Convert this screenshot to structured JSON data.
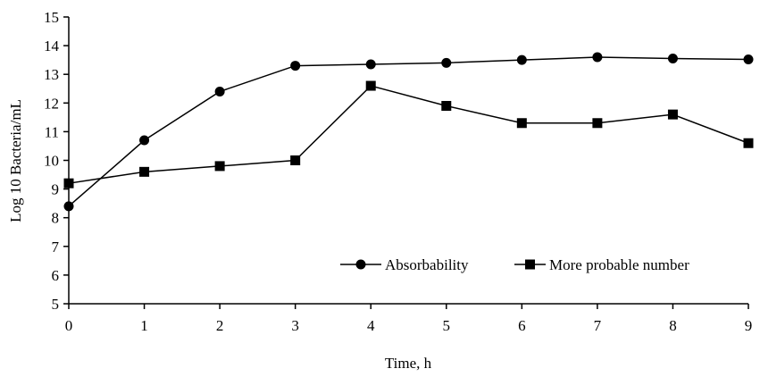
{
  "chart_data": {
    "type": "line",
    "title": "",
    "xlabel": "Time, h",
    "ylabel": "Log 10 Bacteria/mL",
    "xlim": [
      0,
      9
    ],
    "ylim": [
      5,
      15
    ],
    "x_ticks": [
      0,
      1,
      2,
      3,
      4,
      5,
      6,
      7,
      8,
      9
    ],
    "y_ticks": [
      5,
      6,
      7,
      8,
      9,
      10,
      11,
      12,
      13,
      14,
      15
    ],
    "grid": false,
    "legend_position": "bottom-right",
    "x": [
      0,
      1,
      2,
      3,
      4,
      5,
      6,
      7,
      8,
      9
    ],
    "series": [
      {
        "name": "Absorbability",
        "marker": "circle",
        "color": "#000000",
        "values": [
          8.4,
          10.7,
          12.4,
          13.3,
          13.35,
          13.4,
          13.5,
          13.6,
          13.55,
          13.52
        ]
      },
      {
        "name": "More probable number",
        "marker": "square",
        "color": "#000000",
        "values": [
          9.2,
          9.6,
          9.8,
          10.0,
          12.6,
          11.9,
          11.3,
          11.3,
          11.6,
          10.6
        ]
      }
    ]
  }
}
